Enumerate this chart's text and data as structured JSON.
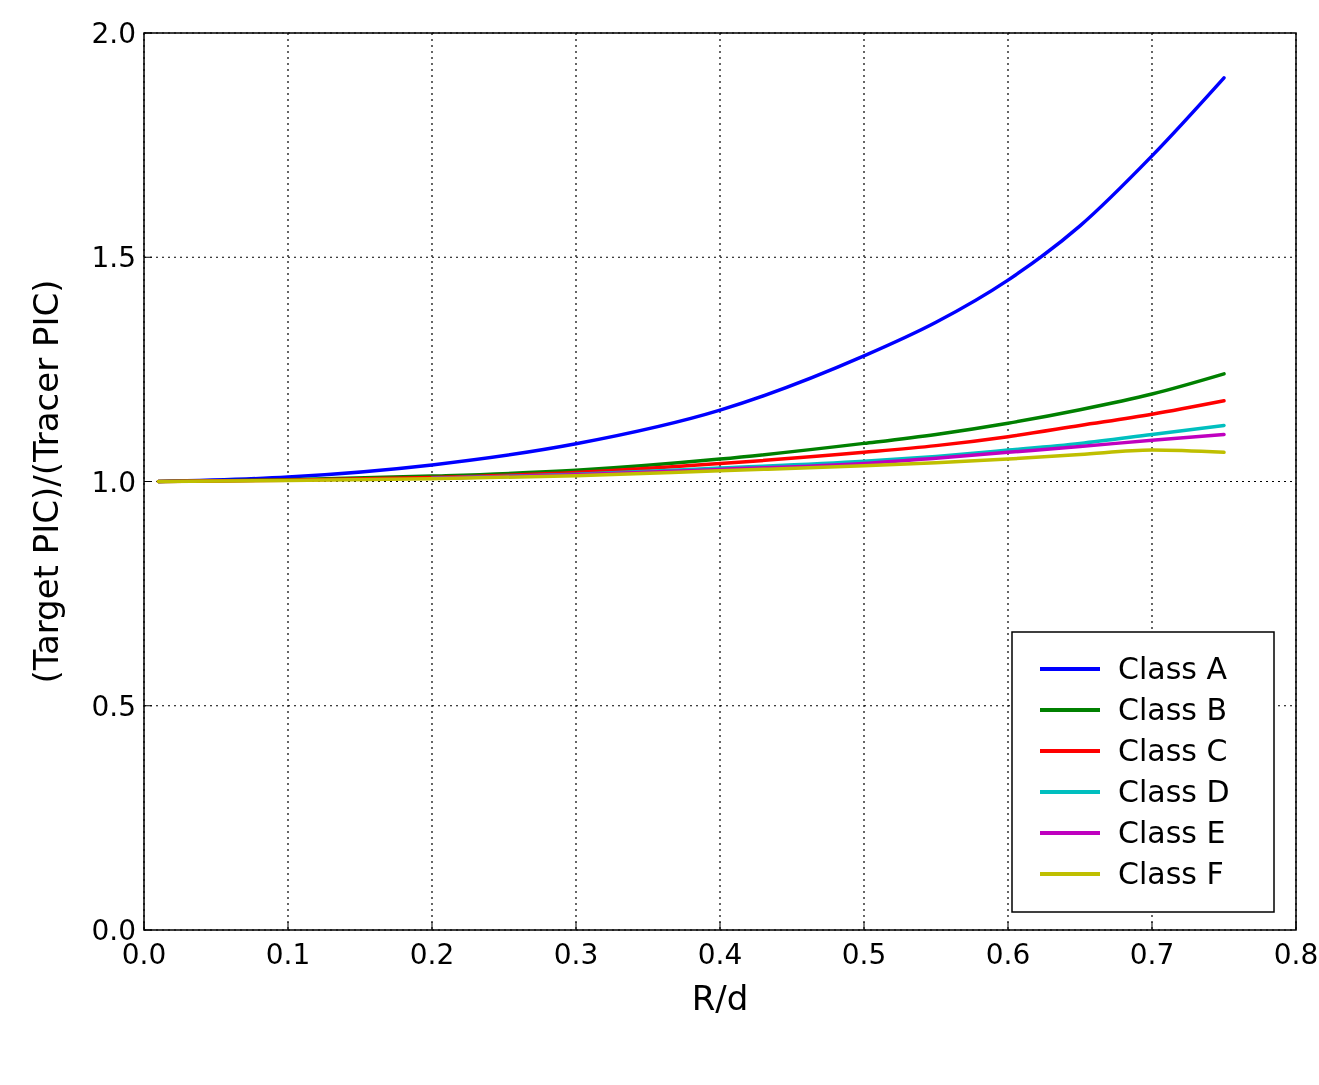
{
  "chart_data": {
    "type": "line",
    "xlabel": "R/d",
    "ylabel": "(Target PIC)/(Tracer PIC)",
    "x": [
      0.01,
      0.1,
      0.2,
      0.3,
      0.4,
      0.5,
      0.55,
      0.6,
      0.65,
      0.7,
      0.75
    ],
    "xlim": [
      0,
      0.8
    ],
    "xticks": [
      {
        "value": 0,
        "label": "0.0"
      },
      0.1,
      0.2,
      0.3,
      0.4,
      0.5,
      0.6,
      0.7,
      0.8
    ],
    "ylim": [
      0,
      2
    ],
    "yticks": [
      {
        "value": 0,
        "label": "0.0"
      },
      0.5,
      {
        "value": 1,
        "label": "1.0"
      },
      1.5,
      {
        "value": 2,
        "label": "2.0"
      }
    ],
    "grid": true,
    "legend": "bottom right",
    "series": [
      {
        "name": "Class A",
        "color": "#0000ff",
        "values": [
          1.0,
          1.01,
          1.037,
          1.084,
          1.159,
          1.28,
          1.355,
          1.449,
          1.57,
          1.726,
          1.9
        ]
      },
      {
        "name": "Class B",
        "color": "#008000",
        "values": [
          1.0,
          1.004,
          1.012,
          1.025,
          1.05,
          1.085,
          1.105,
          1.13,
          1.16,
          1.195,
          1.24
        ]
      },
      {
        "name": "Class C",
        "color": "#ff0000",
        "values": [
          1.0,
          1.003,
          1.009,
          1.02,
          1.04,
          1.065,
          1.08,
          1.1,
          1.125,
          1.15,
          1.18
        ]
      },
      {
        "name": "Class D",
        "color": "#00bfbf",
        "values": [
          null,
          null,
          1.007,
          1.016,
          1.03,
          1.045,
          1.056,
          1.07,
          1.085,
          1.105,
          1.125
        ]
      },
      {
        "name": "Class E",
        "color": "#bf00bf",
        "values": [
          null,
          null,
          1.007,
          1.015,
          1.027,
          1.04,
          1.052,
          1.065,
          1.078,
          1.092,
          1.105
        ]
      },
      {
        "name": "Class F",
        "color": "#bfbf00",
        "values": [
          1.0,
          1.002,
          1.006,
          1.013,
          1.024,
          1.035,
          1.042,
          1.05,
          1.06,
          1.07,
          1.065
        ]
      }
    ]
  }
}
